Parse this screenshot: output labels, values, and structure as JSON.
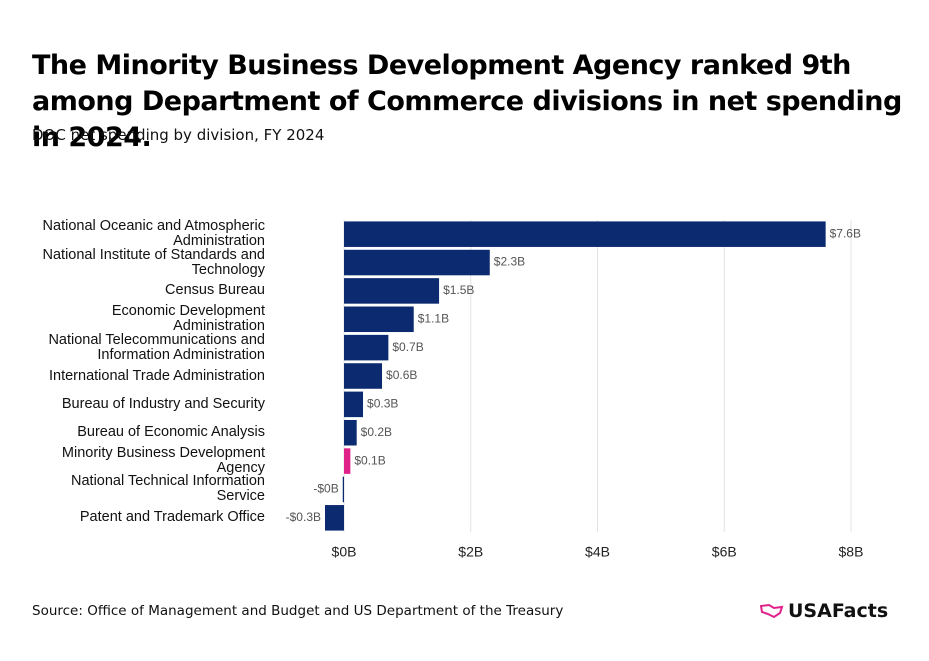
{
  "chart_data": {
    "type": "hbar",
    "title": "The Minority Business Development Agency ranked 9th among Department of Commerce divisions in net spending in 2024.",
    "subtitle": "DOC net spending by division, FY 2024",
    "categories": [
      "National Oceanic and Atmospheric Administration",
      "National Institute of Standards and Technology",
      "Census Bureau",
      "Economic Development Administration",
      "National Telecommunications and Information Administration",
      "International Trade Administration",
      "Bureau of Industry and Security",
      "Bureau of Economic Analysis",
      "Minority Business Development Agency",
      "National Technical Information Service",
      "Patent and Trademark Office"
    ],
    "values": [
      7.6,
      2.3,
      1.5,
      1.1,
      0.7,
      0.6,
      0.3,
      0.2,
      0.1,
      -0.02,
      -0.3
    ],
    "value_labels": [
      "$7.6B",
      "$2.3B",
      "$1.5B",
      "$1.1B",
      "$0.7B",
      "$0.6B",
      "$0.3B",
      "$0.2B",
      "$0.1B",
      "-$0B",
      "-$0.3B"
    ],
    "colors": [
      "#0b2a6f",
      "#0b2a6f",
      "#0b2a6f",
      "#0b2a6f",
      "#0b2a6f",
      "#0b2a6f",
      "#0b2a6f",
      "#0b2a6f",
      "#e0218a",
      "#0b2a6f",
      "#0b2a6f"
    ],
    "xlim": [
      -0.3,
      8.3
    ],
    "xticks": [
      {
        "value": 0,
        "label": "$0B"
      },
      {
        "value": 2,
        "label": "$2B"
      },
      {
        "value": 4,
        "label": "$4B"
      },
      {
        "value": 6,
        "label": "$6B"
      },
      {
        "value": 8,
        "label": "$8B"
      }
    ],
    "grid": true,
    "source": "Source: Office of Management and Budget and US Department of the Treasury",
    "logo": "USAFacts"
  }
}
